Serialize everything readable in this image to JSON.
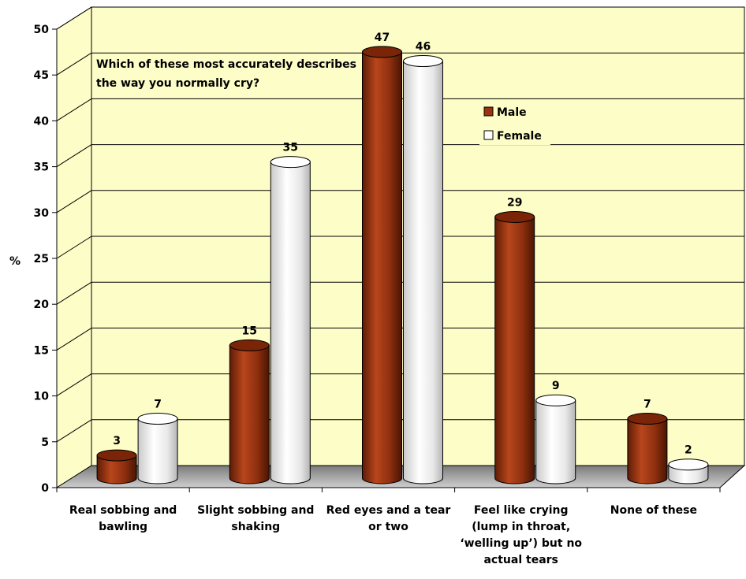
{
  "colors": {
    "male": "#9a3410",
    "female": "#f2f2f2",
    "wall": "#fdfdc8",
    "floor": "#8a8a8a"
  },
  "chart_data": {
    "type": "bar",
    "title": "",
    "annotation_lines": [
      "Which of these most accurately describes",
      "the way you normally cry?"
    ],
    "xlabel": "",
    "ylabel": "%",
    "ylim": [
      0,
      50
    ],
    "yticks": [
      0,
      5,
      10,
      15,
      20,
      25,
      30,
      35,
      40,
      45,
      50
    ],
    "grid": true,
    "legend_position": "top-right",
    "categories": [
      [
        "Real sobbing and",
        "bawling"
      ],
      [
        "Slight sobbing and",
        "shaking"
      ],
      [
        "Red eyes and a tear",
        "or two"
      ],
      [
        "Feel like crying",
        "(lump in throat,",
        "‘welling up’) but no",
        "actual tears"
      ],
      [
        "None of these"
      ]
    ],
    "series": [
      {
        "name": "Male",
        "values": [
          3,
          15,
          47,
          29,
          7
        ]
      },
      {
        "name": "Female",
        "values": [
          7,
          35,
          46,
          9,
          2
        ]
      }
    ]
  }
}
